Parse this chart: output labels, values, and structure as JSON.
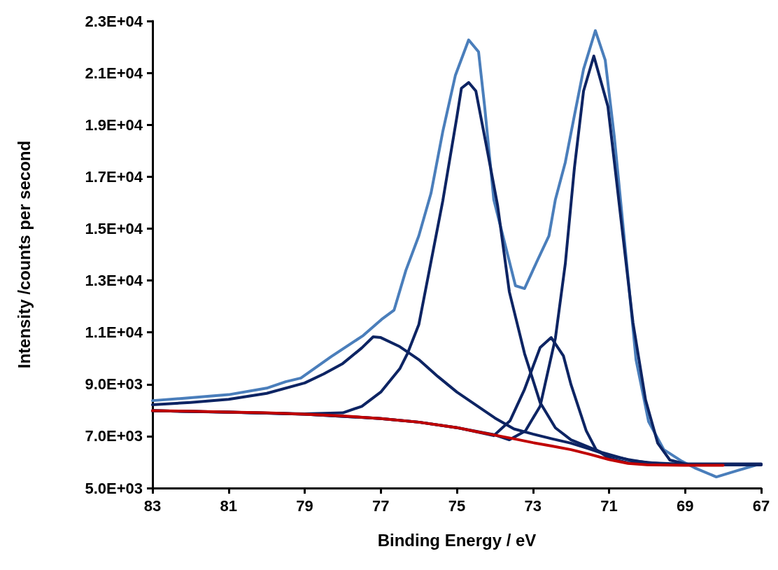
{
  "chart_data": {
    "type": "line",
    "xlabel": "Binding Energy / eV",
    "ylabel": "Intensity /counts per second",
    "xlim": [
      83,
      67
    ],
    "xticks": [
      83,
      81,
      79,
      77,
      75,
      73,
      71,
      69,
      67
    ],
    "ylim": [
      5000,
      23000
    ],
    "yticks": [
      {
        "value": 5000,
        "label": "5.0E+03"
      },
      {
        "value": 7000,
        "label": "7.0E+03"
      },
      {
        "value": 9000,
        "label": "9.0E+03"
      },
      {
        "value": 11000,
        "label": "1.1E+04"
      },
      {
        "value": 13000,
        "label": "1.3E+04"
      },
      {
        "value": 15000,
        "label": "1.5E+04"
      },
      {
        "value": 17000,
        "label": "1.7E+04"
      },
      {
        "value": 19000,
        "label": "1.9E+04"
      },
      {
        "value": 21000,
        "label": "2.1E+04"
      },
      {
        "value": 23000,
        "label": "2.3E+04"
      }
    ],
    "marker": "none",
    "line_style": "solid",
    "series": [
      {
        "color": "#4a7ebb",
        "x": [
          83,
          82,
          81,
          80,
          79.5,
          79.1,
          78.3,
          77.46,
          76.98,
          76.65,
          76.34,
          76,
          75.68,
          75.37,
          75.04,
          74.69,
          74.43,
          74.27,
          74.03,
          73.79,
          73.46,
          73.22,
          72.89,
          72.58,
          72.41,
          72.15,
          71.91,
          71.67,
          71.36,
          71.1,
          70.86,
          70.62,
          70.29,
          69.96,
          69.56,
          69.08,
          68.75,
          68.18,
          67.68,
          67.13,
          67
        ],
        "values": [
          8370,
          8480,
          8600,
          8850,
          9100,
          9240,
          10070,
          10880,
          11500,
          11860,
          13390,
          14720,
          16360,
          18740,
          20900,
          22270,
          21810,
          19710,
          16120,
          14720,
          12800,
          12690,
          13750,
          14720,
          16120,
          17550,
          19360,
          21140,
          22630,
          21490,
          18520,
          14930,
          9940,
          7560,
          6480,
          6030,
          5780,
          5430,
          5650,
          5890,
          5900
        ]
      },
      {
        "color": "#0d2463",
        "x": [
          83,
          82,
          81,
          80,
          79,
          78.5,
          78,
          77.5,
          77.2,
          77,
          76.5,
          76,
          75.5,
          75,
          74.5,
          74,
          73.5,
          73,
          72.5,
          72,
          71.5,
          71,
          70.5,
          70,
          69,
          68,
          67
        ],
        "values": [
          8210,
          8300,
          8420,
          8650,
          9050,
          9400,
          9800,
          10400,
          10830,
          10800,
          10450,
          9950,
          9300,
          8700,
          8200,
          7700,
          7280,
          7080,
          6900,
          6730,
          6500,
          6250,
          6100,
          5980,
          5920,
          5910,
          5910
        ]
      },
      {
        "color": "#0d2463",
        "x": [
          83,
          79,
          78,
          77.5,
          77,
          76.5,
          76.3,
          76,
          75.37,
          75,
          74.88,
          74.69,
          74.5,
          74.19,
          73.93,
          73.62,
          73.22,
          72.81,
          72.41,
          72,
          71.2,
          70.4,
          69.5,
          68,
          67
        ],
        "values": [
          7980,
          7860,
          7900,
          8150,
          8700,
          9600,
          10180,
          11300,
          16070,
          19300,
          20410,
          20630,
          20300,
          17930,
          15900,
          12560,
          10180,
          8290,
          7320,
          6860,
          6380,
          6050,
          5920,
          5900,
          5900
        ]
      },
      {
        "color": "#0d2463",
        "x": [
          83,
          81,
          79,
          77,
          76,
          75,
          74.03,
          73.6,
          73.22,
          72.81,
          72.52,
          72.2,
          72,
          71.6,
          71.34,
          71,
          70.5,
          70,
          68,
          67
        ],
        "values": [
          7980,
          7930,
          7850,
          7680,
          7540,
          7330,
          7020,
          7600,
          8810,
          10420,
          10800,
          10100,
          8990,
          7210,
          6480,
          6150,
          5970,
          5920,
          5900,
          5900
        ]
      },
      {
        "color": "#0d2463",
        "x": [
          83,
          81,
          79,
          77,
          76,
          75,
          74,
          73.62,
          73.2,
          72.81,
          72.41,
          72.15,
          71.91,
          71.67,
          71.4,
          71.03,
          70.7,
          70.37,
          70.04,
          69.72,
          69.4,
          69,
          67
        ],
        "values": [
          7980,
          7930,
          7850,
          7680,
          7540,
          7330,
          7050,
          6860,
          7200,
          8160,
          10780,
          13640,
          17340,
          20300,
          21650,
          19710,
          15540,
          11370,
          8400,
          6730,
          6080,
          5930,
          5930
        ]
      },
      {
        "color": "#c00000",
        "x": [
          83,
          82,
          81,
          80,
          79,
          78,
          77,
          76,
          75,
          74.5,
          74,
          73.5,
          73,
          72.5,
          72,
          71.5,
          71,
          70.5,
          70,
          69,
          68
        ],
        "values": [
          7980,
          7960,
          7930,
          7900,
          7850,
          7780,
          7680,
          7540,
          7330,
          7180,
          7040,
          6900,
          6750,
          6620,
          6480,
          6300,
          6100,
          5950,
          5900,
          5880,
          5880
        ]
      }
    ]
  }
}
